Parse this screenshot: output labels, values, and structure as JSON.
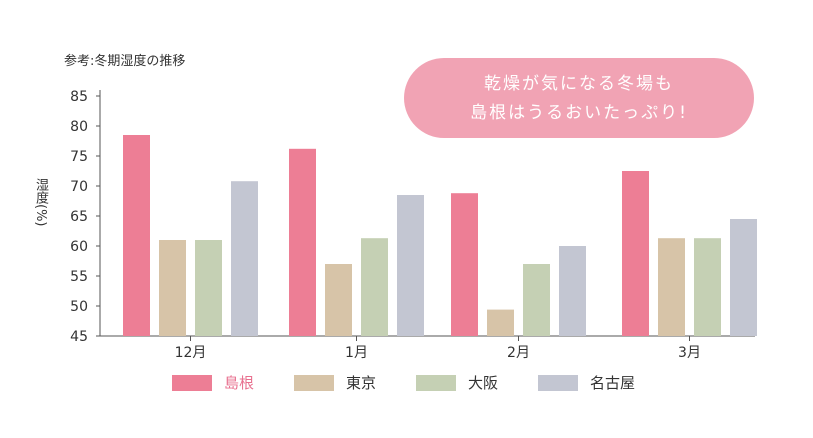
{
  "chart_data": {
    "type": "bar",
    "title": "参考:冬期湿度の推移",
    "ylabel": "湿度(%)",
    "xlabel": "",
    "ylim": [
      45,
      85
    ],
    "yticks": [
      45,
      50,
      55,
      60,
      65,
      70,
      75,
      80,
      85
    ],
    "categories": [
      "12月",
      "1月",
      "2月",
      "3月"
    ],
    "series": [
      {
        "name": "島根",
        "color": "#ed7e95",
        "values": [
          78.5,
          76.2,
          68.8,
          72.5
        ]
      },
      {
        "name": "東京",
        "color": "#d7c4a8",
        "values": [
          61,
          57,
          49.4,
          61.3
        ]
      },
      {
        "name": "大阪",
        "color": "#c5d0b4",
        "values": [
          61,
          61.3,
          57,
          61.3
        ]
      },
      {
        "name": "名古屋",
        "color": "#c3c6d2",
        "values": [
          70.8,
          68.5,
          60,
          64.5
        ]
      }
    ],
    "grid": false,
    "legend_position": "bottom"
  },
  "callout": {
    "line1": "乾燥が気になる冬場も",
    "line2": "島根はうるおいたっぷり!",
    "color": "#f1a3b4"
  },
  "colors": {
    "axis": "#555555",
    "text": "#333333",
    "highlight_text": "#e8708f"
  }
}
